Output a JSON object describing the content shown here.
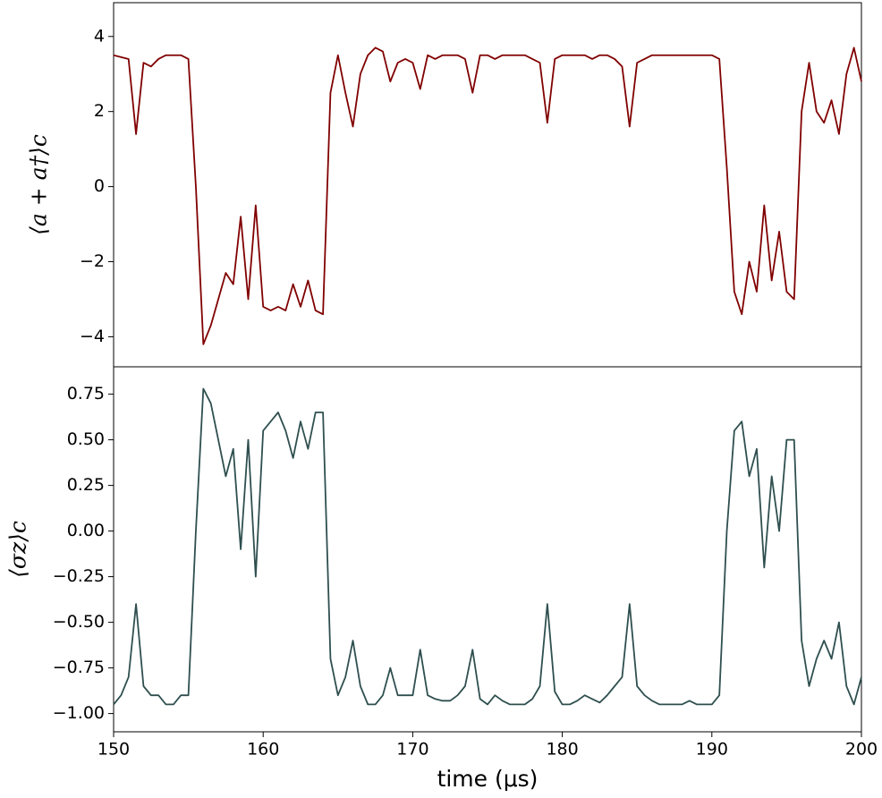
{
  "chart_data": [
    {
      "type": "line",
      "ylabel": "⟨a + a†⟩c",
      "x": [
        150,
        150.5,
        151,
        151.5,
        152,
        152.5,
        153,
        153.5,
        154,
        154.5,
        155,
        155.5,
        156,
        156.5,
        157,
        157.5,
        158,
        158.5,
        159,
        159.5,
        160,
        160.5,
        161,
        161.5,
        162,
        162.5,
        163,
        163.5,
        164,
        164.5,
        165,
        165.5,
        166,
        166.5,
        167,
        167.5,
        168,
        168.5,
        169,
        169.5,
        170,
        170.5,
        171,
        171.5,
        172,
        172.5,
        173,
        173.5,
        174,
        174.5,
        175,
        175.5,
        176,
        176.5,
        177,
        177.5,
        178,
        178.5,
        179,
        179.5,
        180,
        180.5,
        181,
        181.5,
        182,
        182.5,
        183,
        183.5,
        184,
        184.5,
        185,
        185.5,
        186,
        186.5,
        187,
        187.5,
        188,
        188.5,
        189,
        189.5,
        190,
        190.5,
        191,
        191.5,
        192,
        192.5,
        193,
        193.5,
        194,
        194.5,
        195,
        195.5,
        196,
        196.5,
        197,
        197.5,
        198,
        198.5,
        199,
        199.5,
        200
      ],
      "series": [
        {
          "color": "#800000",
          "values": [
            3.5,
            3.45,
            3.4,
            1.4,
            3.3,
            3.2,
            3.4,
            3.5,
            3.5,
            3.5,
            3.4,
            0.0,
            -4.2,
            -3.7,
            -3.0,
            -2.3,
            -2.6,
            -0.8,
            -3.0,
            -0.5,
            -3.2,
            -3.3,
            -3.2,
            -3.3,
            -2.6,
            -3.2,
            -2.5,
            -3.3,
            -3.4,
            2.5,
            3.5,
            2.5,
            1.6,
            3.0,
            3.5,
            3.7,
            3.6,
            2.8,
            3.3,
            3.4,
            3.3,
            2.6,
            3.5,
            3.4,
            3.5,
            3.5,
            3.5,
            3.4,
            2.5,
            3.5,
            3.5,
            3.4,
            3.5,
            3.5,
            3.5,
            3.5,
            3.4,
            3.3,
            1.7,
            3.4,
            3.5,
            3.5,
            3.5,
            3.5,
            3.4,
            3.5,
            3.5,
            3.4,
            3.2,
            1.6,
            3.3,
            3.4,
            3.5,
            3.5,
            3.5,
            3.5,
            3.5,
            3.5,
            3.5,
            3.5,
            3.5,
            3.4,
            0.5,
            -2.8,
            -3.4,
            -2.0,
            -2.8,
            -0.5,
            -2.5,
            -1.2,
            -2.8,
            -3.0,
            2.0,
            3.3,
            2.0,
            1.7,
            2.3,
            1.4,
            3.0,
            3.7,
            2.8
          ]
        }
      ],
      "xlim": [
        150,
        200
      ],
      "ylim": [
        -4.8,
        4.9
      ],
      "yticks": [
        {
          "value": -4,
          "label": "−4"
        },
        {
          "value": -2,
          "label": "−2"
        },
        0,
        2,
        4
      ]
    },
    {
      "type": "line",
      "ylabel": "⟨σz⟩c",
      "xlabel": "time (μs)",
      "x": [
        150,
        150.5,
        151,
        151.5,
        152,
        152.5,
        153,
        153.5,
        154,
        154.5,
        155,
        155.5,
        156,
        156.5,
        157,
        157.5,
        158,
        158.5,
        159,
        159.5,
        160,
        160.5,
        161,
        161.5,
        162,
        162.5,
        163,
        163.5,
        164,
        164.5,
        165,
        165.5,
        166,
        166.5,
        167,
        167.5,
        168,
        168.5,
        169,
        169.5,
        170,
        170.5,
        171,
        171.5,
        172,
        172.5,
        173,
        173.5,
        174,
        174.5,
        175,
        175.5,
        176,
        176.5,
        177,
        177.5,
        178,
        178.5,
        179,
        179.5,
        180,
        180.5,
        181,
        181.5,
        182,
        182.5,
        183,
        183.5,
        184,
        184.5,
        185,
        185.5,
        186,
        186.5,
        187,
        187.5,
        188,
        188.5,
        189,
        189.5,
        190,
        190.5,
        191,
        191.5,
        192,
        192.5,
        193,
        193.5,
        194,
        194.5,
        195,
        195.5,
        196,
        196.5,
        197,
        197.5,
        198,
        198.5,
        199,
        199.5,
        200
      ],
      "series": [
        {
          "color": "#2f4f4f",
          "values": [
            -0.95,
            -0.9,
            -0.8,
            -0.4,
            -0.85,
            -0.9,
            -0.9,
            -0.95,
            -0.95,
            -0.9,
            -0.9,
            0.0,
            0.78,
            0.7,
            0.5,
            0.3,
            0.45,
            -0.1,
            0.5,
            -0.25,
            0.55,
            0.6,
            0.65,
            0.55,
            0.4,
            0.6,
            0.45,
            0.65,
            0.65,
            -0.7,
            -0.9,
            -0.8,
            -0.6,
            -0.85,
            -0.95,
            -0.95,
            -0.9,
            -0.75,
            -0.9,
            -0.9,
            -0.9,
            -0.65,
            -0.9,
            -0.92,
            -0.93,
            -0.93,
            -0.9,
            -0.85,
            -0.65,
            -0.92,
            -0.95,
            -0.9,
            -0.93,
            -0.95,
            -0.95,
            -0.95,
            -0.92,
            -0.85,
            -0.4,
            -0.88,
            -0.95,
            -0.95,
            -0.93,
            -0.9,
            -0.92,
            -0.94,
            -0.9,
            -0.85,
            -0.8,
            -0.4,
            -0.85,
            -0.9,
            -0.93,
            -0.95,
            -0.95,
            -0.95,
            -0.95,
            -0.93,
            -0.95,
            -0.95,
            -0.95,
            -0.9,
            0.0,
            0.55,
            0.6,
            0.3,
            0.45,
            -0.2,
            0.3,
            0.0,
            0.5,
            0.5,
            -0.6,
            -0.85,
            -0.7,
            -0.6,
            -0.7,
            -0.5,
            -0.85,
            -0.95,
            -0.8
          ]
        }
      ],
      "xlim": [
        150,
        200
      ],
      "ylim": [
        -1.1,
        0.9
      ],
      "xticks": [
        150,
        160,
        170,
        180,
        190,
        200
      ],
      "yticks": [
        {
          "value": -1.0,
          "label": "−1.00"
        },
        {
          "value": -0.75,
          "label": "−0.75"
        },
        {
          "value": -0.5,
          "label": "−0.50"
        },
        {
          "value": -0.25,
          "label": "−0.25"
        },
        {
          "value": 0,
          "label": "0.00"
        },
        {
          "value": 0.25,
          "label": "0.25"
        },
        {
          "value": 0.5,
          "label": "0.50"
        },
        {
          "value": 0.75,
          "label": "0.75"
        }
      ]
    }
  ]
}
